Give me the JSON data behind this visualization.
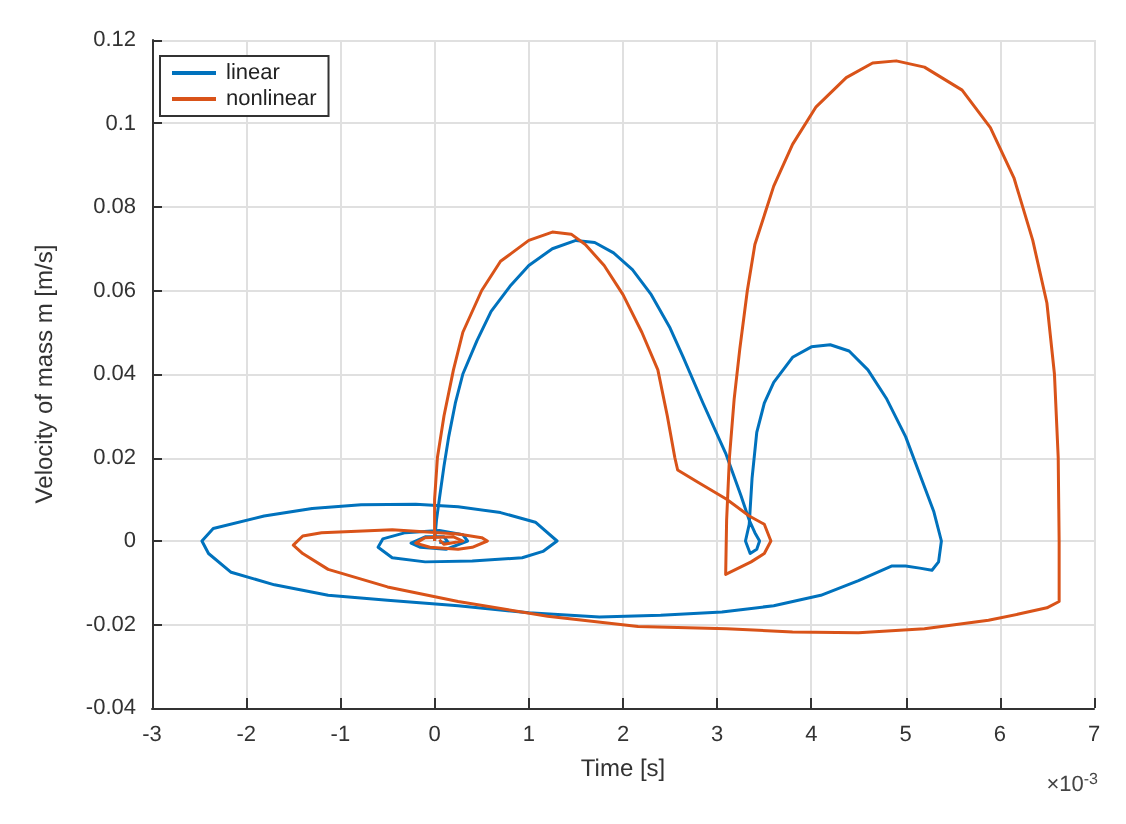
{
  "chart_data": {
    "type": "line",
    "xlabel": "Time [s]",
    "ylabel": "Velocity of mass m [m/s]",
    "annotations": [
      "×10$^{-3}$"
    ],
    "xlim": [
      -3,
      7
    ],
    "xticks": [
      -3,
      -2,
      -1,
      0,
      1,
      2,
      3,
      4,
      5,
      6,
      7
    ],
    "ylim": [
      -0.04,
      0.12
    ],
    "yticks": [
      -0.04,
      -0.02,
      0,
      0.02,
      0.04,
      0.06,
      0.08,
      0.1,
      0.12
    ],
    "grid": true,
    "legend": "top left",
    "series": [
      {
        "name": "linear",
        "color": "#0072bd",
        "x": [
          0,
          0.02,
          0.05,
          0.1,
          0.15,
          0.22,
          0.3,
          0.45,
          0.6,
          0.8,
          1.0,
          1.25,
          1.5,
          1.7,
          1.9,
          2.1,
          2.3,
          2.5,
          2.64,
          2.85,
          3.09,
          3.25,
          3.34,
          3.4,
          3.45,
          3.42,
          3.35,
          3.3,
          3.34,
          3.37,
          3.42,
          3.5,
          3.6,
          3.8,
          4.0,
          4.2,
          4.4,
          4.6,
          4.8,
          5.0,
          5.15,
          5.3,
          5.38,
          5.35,
          5.28,
          5.15,
          5.0,
          4.85,
          4.5,
          4.1,
          3.6,
          3.05,
          2.4,
          1.75,
          1.0,
          0.25,
          -0.5,
          -1.13,
          -1.7,
          -2.16,
          -2.4,
          -2.47,
          -2.35,
          -1.81,
          -1.3,
          -0.78,
          -0.2,
          0.25,
          0.7,
          1.07,
          1.3,
          1.15,
          0.93,
          0.4,
          -0.1,
          -0.45,
          -0.6,
          -0.55,
          -0.31,
          0.05,
          0.3,
          0.35,
          0.12,
          -0.15,
          -0.25,
          -0.1,
          0.1,
          0.15,
          0.05
        ],
        "values": [
          0,
          0.005,
          0.01,
          0.018,
          0.025,
          0.033,
          0.04,
          0.048,
          0.055,
          0.061,
          0.066,
          0.07,
          0.072,
          0.0715,
          0.069,
          0.065,
          0.059,
          0.051,
          0.044,
          0.033,
          0.021,
          0.011,
          0.005,
          0.002,
          0,
          -0.002,
          -0.003,
          0,
          0.004,
          0.015,
          0.026,
          0.033,
          0.038,
          0.044,
          0.0465,
          0.047,
          0.0455,
          0.041,
          0.034,
          0.025,
          0.016,
          0.007,
          0,
          -0.005,
          -0.007,
          -0.0065,
          -0.006,
          -0.006,
          -0.0095,
          -0.013,
          -0.0155,
          -0.017,
          -0.0178,
          -0.0182,
          -0.0172,
          -0.0155,
          -0.0142,
          -0.013,
          -0.0105,
          -0.0075,
          -0.003,
          0,
          0.003,
          0.006,
          0.0078,
          0.0087,
          0.0088,
          0.0082,
          0.0068,
          0.0045,
          0,
          -0.0025,
          -0.004,
          -0.0048,
          -0.005,
          -0.004,
          -0.0015,
          0.0005,
          0.002,
          0.0025,
          0.0015,
          0,
          -0.002,
          -0.0015,
          -0.0005,
          0.001,
          0.001,
          -0.0005,
          -0.0003
        ]
      },
      {
        "name": "nonlinear",
        "color": "#d95319",
        "x": [
          0,
          0,
          0.03,
          0.1,
          0.2,
          0.3,
          0.5,
          0.7,
          1.0,
          1.25,
          1.45,
          1.6,
          1.8,
          2.0,
          2.2,
          2.37,
          2.47,
          2.55,
          2.58,
          2.8,
          3.1,
          3.34,
          3.5,
          3.57,
          3.5,
          3.36,
          3.09,
          3.1,
          3.13,
          3.18,
          3.24,
          3.32,
          3.4,
          3.6,
          3.8,
          4.05,
          4.37,
          4.65,
          4.9,
          5.2,
          5.6,
          5.9,
          6.15,
          6.35,
          6.5,
          6.58,
          6.62,
          6.63,
          6.63,
          6.5,
          6.2,
          5.88,
          5.2,
          4.5,
          3.8,
          3.1,
          2.16,
          1.2,
          0.25,
          -0.5,
          -1.13,
          -1.4,
          -1.5,
          -1.4,
          -1.2,
          -0.45,
          0.25,
          0.5,
          0.56,
          0.4,
          0.25,
          -0.05,
          -0.2,
          -0.1,
          0.2,
          0.3,
          0.1,
          0.05
        ],
        "values": [
          0,
          0.01,
          0.02,
          0.03,
          0.041,
          0.05,
          0.06,
          0.067,
          0.072,
          0.074,
          0.0735,
          0.071,
          0.066,
          0.059,
          0.05,
          0.041,
          0.03,
          0.02,
          0.017,
          0.014,
          0.01,
          0.006,
          0.004,
          0,
          -0.003,
          -0.005,
          -0.008,
          0.005,
          0.02,
          0.034,
          0.046,
          0.06,
          0.071,
          0.085,
          0.095,
          0.104,
          0.111,
          0.1145,
          0.115,
          0.1135,
          0.108,
          0.099,
          0.087,
          0.072,
          0.057,
          0.04,
          0.02,
          0,
          -0.0145,
          -0.016,
          -0.0175,
          -0.019,
          -0.021,
          -0.022,
          -0.0218,
          -0.021,
          -0.0205,
          -0.018,
          -0.0145,
          -0.011,
          -0.0068,
          -0.003,
          -0.001,
          0.0012,
          0.002,
          0.0027,
          0.0017,
          0.0008,
          0,
          -0.0015,
          -0.002,
          -0.0015,
          -0.0005,
          0.0008,
          0.001,
          0,
          -0.0008,
          0.0003
        ]
      }
    ]
  }
}
